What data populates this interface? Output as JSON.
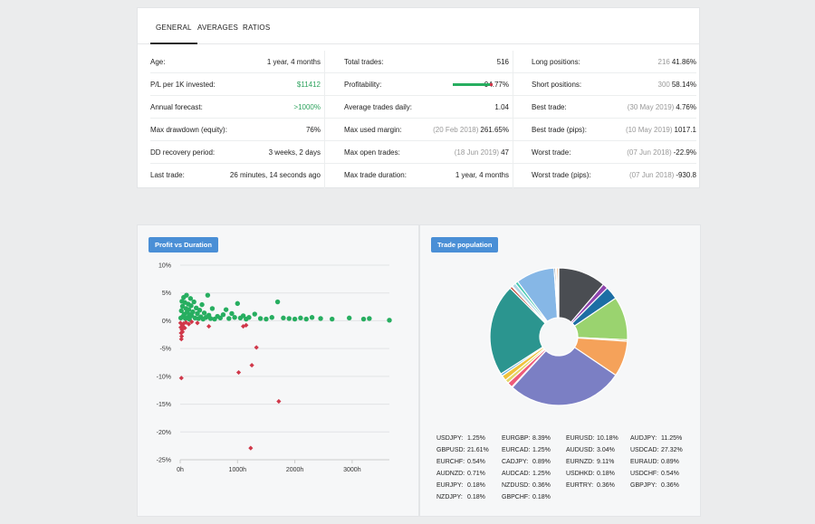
{
  "tabs": [
    "GENERAL",
    "AVERAGES",
    "RATIOS"
  ],
  "stats": {
    "col1": [
      {
        "label": "Age:",
        "value": "1 year, 4 months"
      },
      {
        "label": "P/L per 1K invested:",
        "value": "$11412"
      },
      {
        "label": "Annual forecast:",
        "value": ">1000%"
      },
      {
        "label": "Max drawdown (equity):",
        "value": "76%"
      },
      {
        "label": "DD recovery period:",
        "value": "3 weeks, 2 days"
      },
      {
        "label": "Last trade:",
        "value": "26 minutes, 14 seconds ago"
      }
    ],
    "col2": [
      {
        "label": "Total trades:",
        "sub": "",
        "value": "516"
      },
      {
        "label": "Profitability:",
        "sub": "",
        "value": "94.77%"
      },
      {
        "label": "Average trades daily:",
        "sub": "",
        "value": "1.04"
      },
      {
        "label": "Max used margin:",
        "sub": "(20 Feb 2018)",
        "value": "261.65%"
      },
      {
        "label": "Max open trades:",
        "sub": "(18 Jun 2019)",
        "value": "47"
      },
      {
        "label": "Max trade duration:",
        "sub": "",
        "value": "1 year, 4 months"
      }
    ],
    "col3": [
      {
        "label": "Long positions:",
        "sub": "216",
        "value": "41.86%"
      },
      {
        "label": "Short positions:",
        "sub": "300",
        "value": "58.14%"
      },
      {
        "label": "Best trade:",
        "sub": "(30 May 2019)",
        "value": "4.76%"
      },
      {
        "label": "Best trade (pips):",
        "sub": "(10 May 2019)",
        "value": "1017.1"
      },
      {
        "label": "Worst trade:",
        "sub": "(07 Jun 2018)",
        "value": "-22.9%"
      },
      {
        "label": "Worst trade (pips):",
        "sub": "(07 Jun 2018)",
        "value": "-930.8"
      }
    ],
    "profitability_fraction": 0.9477
  },
  "colors": {
    "green": "#2ea35e",
    "loss": "#d0384a",
    "badge": "#4a8fd6"
  },
  "scatter": {
    "title": "Profit vs Duration",
    "chart_data": {
      "type": "scatter",
      "xlabel": "",
      "ylabel": "",
      "x_ticks": [
        "0h",
        "1000h",
        "2000h",
        "3000h"
      ],
      "y_ticks": [
        "10%",
        "5%",
        "0%",
        "-5%",
        "-10%",
        "-15%",
        "-20%",
        "-25%"
      ],
      "xlim": [
        0,
        3650
      ],
      "ylim": [
        -25,
        10
      ],
      "series": [
        {
          "color": "#27ae60",
          "shape": "circle",
          "points": [
            [
              10,
              0.5
            ],
            [
              20,
              1.8
            ],
            [
              30,
              3.5
            ],
            [
              40,
              2.6
            ],
            [
              50,
              0.8
            ],
            [
              60,
              4.2
            ],
            [
              70,
              1.2
            ],
            [
              80,
              3.3
            ],
            [
              90,
              0.4
            ],
            [
              100,
              2.2
            ],
            [
              110,
              4.6
            ],
            [
              120,
              1.5
            ],
            [
              130,
              0.6
            ],
            [
              140,
              3.0
            ],
            [
              150,
              2.0
            ],
            [
              160,
              0.3
            ],
            [
              170,
              1.1
            ],
            [
              180,
              4.0
            ],
            [
              190,
              2.7
            ],
            [
              200,
              0.9
            ],
            [
              220,
              1.6
            ],
            [
              240,
              3.4
            ],
            [
              260,
              0.5
            ],
            [
              280,
              2.3
            ],
            [
              300,
              1.3
            ],
            [
              320,
              0.4
            ],
            [
              340,
              1.9
            ],
            [
              360,
              0.7
            ],
            [
              380,
              2.9
            ],
            [
              400,
              0.3
            ],
            [
              420,
              1.4
            ],
            [
              450,
              0.6
            ],
            [
              480,
              4.6
            ],
            [
              500,
              1.0
            ],
            [
              530,
              0.4
            ],
            [
              560,
              2.2
            ],
            [
              600,
              0.3
            ],
            [
              650,
              0.8
            ],
            [
              700,
              0.5
            ],
            [
              750,
              1.1
            ],
            [
              800,
              2.0
            ],
            [
              850,
              0.4
            ],
            [
              900,
              1.3
            ],
            [
              950,
              0.6
            ],
            [
              1000,
              3.1
            ],
            [
              1050,
              0.5
            ],
            [
              1100,
              0.9
            ],
            [
              1150,
              0.3
            ],
            [
              1200,
              0.6
            ],
            [
              1300,
              1.2
            ],
            [
              1400,
              0.4
            ],
            [
              1500,
              0.3
            ],
            [
              1600,
              0.6
            ],
            [
              1700,
              3.4
            ],
            [
              1800,
              0.5
            ],
            [
              1900,
              0.4
            ],
            [
              2000,
              0.3
            ],
            [
              2100,
              0.5
            ],
            [
              2200,
              0.3
            ],
            [
              2300,
              0.6
            ],
            [
              2450,
              0.4
            ],
            [
              2650,
              0.3
            ],
            [
              2950,
              0.5
            ],
            [
              3200,
              0.3
            ],
            [
              3300,
              0.4
            ],
            [
              3650,
              0.1
            ]
          ]
        },
        {
          "color": "#d0384a",
          "shape": "diamond",
          "points": [
            [
              5,
              -0.4
            ],
            [
              10,
              -1.2
            ],
            [
              15,
              -2.2
            ],
            [
              20,
              -3.3
            ],
            [
              25,
              -2.8
            ],
            [
              30,
              -1.6
            ],
            [
              35,
              -0.8
            ],
            [
              40,
              -2.0
            ],
            [
              50,
              -1.0
            ],
            [
              60,
              -0.5
            ],
            [
              80,
              -1.3
            ],
            [
              100,
              -0.3
            ],
            [
              150,
              -0.6
            ],
            [
              200,
              -0.2
            ],
            [
              300,
              -0.4
            ],
            [
              500,
              -1.0
            ],
            [
              1100,
              -1.0
            ],
            [
              1150,
              -0.8
            ],
            [
              20,
              -10.3
            ],
            [
              1020,
              -9.3
            ],
            [
              1250,
              -8.0
            ],
            [
              1330,
              -4.8
            ],
            [
              1720,
              -14.5
            ],
            [
              1230,
              -22.9
            ]
          ]
        }
      ]
    }
  },
  "pie": {
    "title": "Trade population",
    "chart_data": {
      "type": "pie",
      "donut": true,
      "slices": [
        {
          "label": "AUDJPY",
          "value": 11.25,
          "color": "#4a4d52"
        },
        {
          "label": "AUDCAD",
          "value": 1.25,
          "color": "#8e44ad"
        },
        {
          "label": "AUDUSD",
          "value": 3.04,
          "color": "#1c6ea4"
        },
        {
          "label": "EURUSD",
          "value": 10.18,
          "color": "#9ad36f"
        },
        {
          "label": "GBPJPY",
          "value": 0.36,
          "color": "#d5b03a"
        },
        {
          "label": "EURGBP",
          "value": 8.39,
          "color": "#f5a25a"
        },
        {
          "label": "USDCAD",
          "value": 27.32,
          "color": "#7b7fc4"
        },
        {
          "label": "EURJPY",
          "value": 0.18,
          "color": "#d94f7f"
        },
        {
          "label": "USDJPY",
          "value": 1.25,
          "color": "#ef5b7a"
        },
        {
          "label": "CADJPY",
          "value": 0.89,
          "color": "#e3d56a"
        },
        {
          "label": "EURCAD",
          "value": 1.25,
          "color": "#f0c23c"
        },
        {
          "label": "USDCHF",
          "value": 0.54,
          "color": "#5dade2"
        },
        {
          "label": "GBPUSD",
          "value": 21.61,
          "color": "#2b958f"
        },
        {
          "label": "EURCHF",
          "value": 0.54,
          "color": "#c0392b"
        },
        {
          "label": "USDHKD",
          "value": 0.18,
          "color": "#b9b9b9"
        },
        {
          "label": "EURAUD",
          "value": 0.89,
          "color": "#b0d6e6"
        },
        {
          "label": "AUDNZD",
          "value": 0.71,
          "color": "#48c9b0"
        },
        {
          "label": "EURNZD",
          "value": 9.11,
          "color": "#86b7e6"
        },
        {
          "label": "NZDUSD",
          "value": 0.36,
          "color": "#5a6b7a"
        },
        {
          "label": "NZDJPY",
          "value": 0.18,
          "color": "#27ae60"
        },
        {
          "label": "EURTRY",
          "value": 0.36,
          "color": "#e67e22"
        },
        {
          "label": "GBPCHF",
          "value": 0.18,
          "color": "#f39c12"
        }
      ]
    },
    "legend": [
      [
        {
          "label": "USDJPY:",
          "pct": "1.25%"
        },
        {
          "label": "EURGBP:",
          "pct": "8.39%"
        },
        {
          "label": "EURUSD:",
          "pct": "10.18%"
        },
        {
          "label": "AUDJPY:",
          "pct": "11.25%"
        }
      ],
      [
        {
          "label": "GBPUSD:",
          "pct": "21.61%"
        },
        {
          "label": "EURCAD:",
          "pct": "1.25%"
        },
        {
          "label": "AUDUSD:",
          "pct": "3.04%"
        },
        {
          "label": "USDCAD:",
          "pct": "27.32%"
        }
      ],
      [
        {
          "label": "EURCHF:",
          "pct": "0.54%"
        },
        {
          "label": "CADJPY:",
          "pct": "0.89%"
        },
        {
          "label": "EURNZD:",
          "pct": "9.11%"
        },
        {
          "label": "EURAUD:",
          "pct": "0.89%"
        }
      ],
      [
        {
          "label": "AUDNZD:",
          "pct": "0.71%"
        },
        {
          "label": "AUDCAD:",
          "pct": "1.25%"
        },
        {
          "label": "USDHKD:",
          "pct": "0.18%"
        },
        {
          "label": "USDCHF:",
          "pct": "0.54%"
        }
      ],
      [
        {
          "label": "EURJPY:",
          "pct": "0.18%"
        },
        {
          "label": "NZDUSD:",
          "pct": "0.36%"
        },
        {
          "label": "EURTRY:",
          "pct": "0.36%"
        },
        {
          "label": "GBPJPY:",
          "pct": "0.36%"
        }
      ],
      [
        {
          "label": "NZDJPY:",
          "pct": "0.18%"
        },
        {
          "label": "GBPCHF:",
          "pct": "0.18%"
        }
      ]
    ]
  }
}
